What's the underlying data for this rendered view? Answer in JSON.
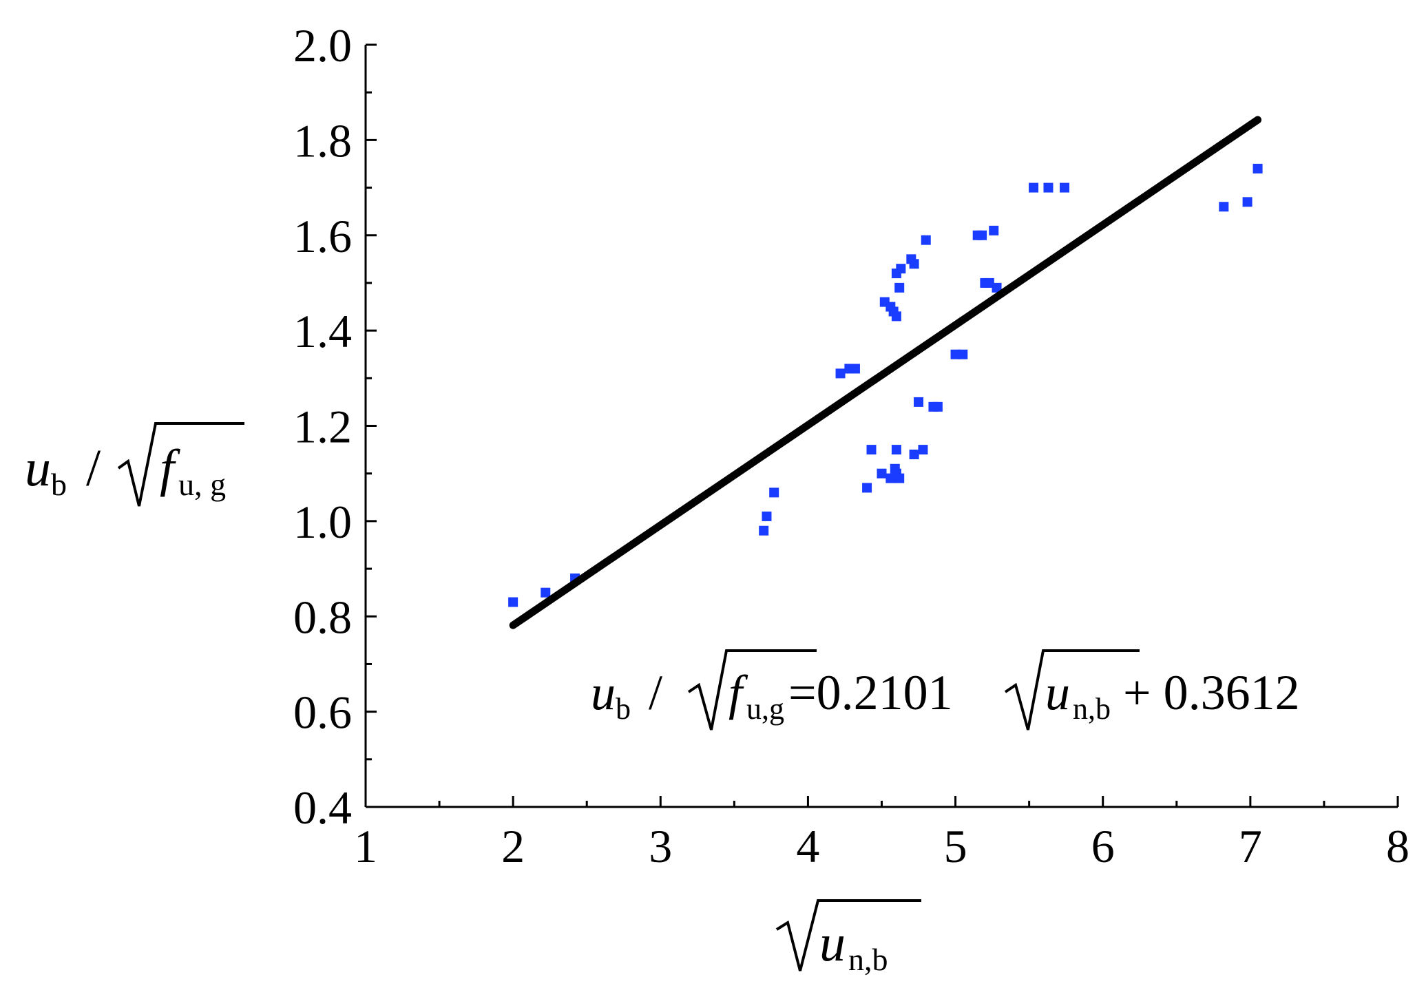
{
  "chart_data": {
    "type": "scatter",
    "xlim": [
      1,
      8
    ],
    "ylim": [
      0.4,
      2.0
    ],
    "x_ticks": [
      "1",
      "2",
      "3",
      "4",
      "5",
      "6",
      "7",
      "8"
    ],
    "y_ticks": [
      "0.4",
      "0.6",
      "0.8",
      "1.0",
      "1.2",
      "1.4",
      "1.6",
      "1.8",
      "2.0"
    ],
    "x_tick_values": [
      1,
      2,
      3,
      4,
      5,
      6,
      7,
      8
    ],
    "y_tick_values": [
      0.4,
      0.6,
      0.8,
      1.0,
      1.2,
      1.4,
      1.6,
      1.8,
      2.0
    ],
    "x_minor_ticks": [
      1.5,
      2.5,
      3.5,
      4.5,
      5.5,
      6.5,
      7.5
    ],
    "y_minor_ticks": [
      0.5,
      0.7,
      0.9,
      1.1,
      1.3,
      1.5,
      1.7,
      1.9
    ],
    "grid": false,
    "xlabel": {
      "main": "u",
      "sub": "n,b"
    },
    "ylabel": {
      "main": "u",
      "sub": "b",
      "slash": "/",
      "root_main": "f",
      "root_sub": "u, g"
    },
    "equation": {
      "lhs_main": "u",
      "lhs_sub": "b",
      "slash": "/",
      "lhs_root_main": "f",
      "lhs_root_sub": "u,g",
      "eq_coef": "=0.2101",
      "rhs_root_main": "u",
      "rhs_root_sub": "n,b",
      "rhs_const": "+ 0.3612"
    },
    "fit_line": {
      "slope": 0.2101,
      "intercept": 0.3612,
      "x_range": [
        2.0,
        7.05
      ],
      "color": "#000000"
    },
    "series": [
      {
        "color": "#1a3cff",
        "points": [
          [
            2.0,
            0.83
          ],
          [
            2.22,
            0.85
          ],
          [
            2.42,
            0.88
          ],
          [
            3.7,
            0.98
          ],
          [
            3.72,
            1.01
          ],
          [
            3.77,
            1.06
          ],
          [
            4.22,
            1.31
          ],
          [
            4.28,
            1.32
          ],
          [
            4.32,
            1.32
          ],
          [
            4.4,
            1.07
          ],
          [
            4.43,
            1.15
          ],
          [
            4.5,
            1.1
          ],
          [
            4.52,
            1.46
          ],
          [
            4.56,
            1.45
          ],
          [
            4.58,
            1.44
          ],
          [
            4.6,
            1.43
          ],
          [
            4.56,
            1.09
          ],
          [
            4.59,
            1.11
          ],
          [
            4.62,
            1.09
          ],
          [
            4.6,
            1.1
          ],
          [
            4.6,
            1.15
          ],
          [
            4.62,
            1.49
          ],
          [
            4.6,
            1.52
          ],
          [
            4.63,
            1.53
          ],
          [
            4.7,
            1.55
          ],
          [
            4.72,
            1.54
          ],
          [
            4.72,
            1.14
          ],
          [
            4.75,
            1.25
          ],
          [
            4.78,
            1.15
          ],
          [
            4.8,
            1.59
          ],
          [
            4.85,
            1.24
          ],
          [
            4.88,
            1.24
          ],
          [
            5.0,
            1.35
          ],
          [
            5.05,
            1.35
          ],
          [
            5.15,
            1.6
          ],
          [
            5.18,
            1.6
          ],
          [
            5.2,
            1.5
          ],
          [
            5.23,
            1.5
          ],
          [
            5.26,
            1.61
          ],
          [
            5.28,
            1.49
          ],
          [
            5.53,
            1.7
          ],
          [
            5.63,
            1.7
          ],
          [
            5.74,
            1.7
          ],
          [
            6.82,
            1.66
          ],
          [
            6.98,
            1.67
          ],
          [
            7.05,
            1.74
          ]
        ]
      }
    ]
  }
}
